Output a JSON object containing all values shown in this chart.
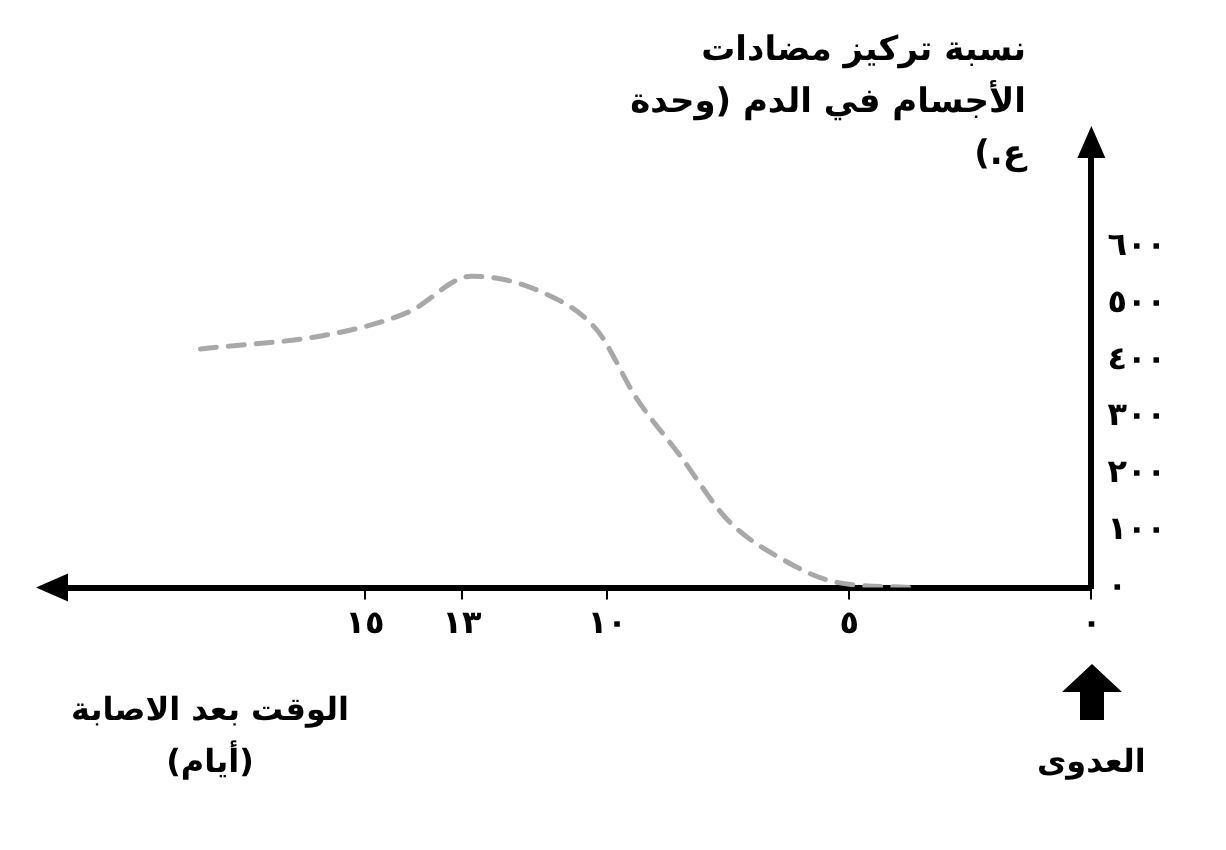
{
  "chart_data": {
    "type": "line",
    "ylabel": "نسبة تركيز مضادات الأجسام في الدم (وحدة ع.)",
    "xlabel": "الوقت بعد الاصابة (أيام)",
    "annotations": [
      "العدوى"
    ],
    "x": [
      18.4,
      15.7,
      14.1,
      12.8,
      11.3,
      10.2,
      9.4,
      8.5,
      7.5,
      6.3,
      5.3,
      3.7
    ],
    "series": [
      {
        "color": "#a8a8a8",
        "values": [
          420,
          446,
          485,
          548,
          518,
          452,
          334,
          233,
          118,
          46,
          10,
          0
        ]
      }
    ],
    "xlim": [
      21.3,
      0
    ],
    "ylim": [
      0,
      770
    ],
    "xticks": [
      {
        "value": 0,
        "label": "٠"
      },
      {
        "value": 5,
        "label": "٥"
      },
      {
        "value": 10,
        "label": "١٠"
      },
      {
        "value": 13,
        "label": "١٣"
      },
      {
        "value": 15,
        "label": "١٥"
      }
    ],
    "yticks": [
      {
        "value": 0,
        "label": "٠"
      },
      {
        "value": 100,
        "label": "١٠٠"
      },
      {
        "value": 200,
        "label": "٢٠٠"
      },
      {
        "value": 300,
        "label": "٣٠٠"
      },
      {
        "value": 400,
        "label": "٤٠٠"
      },
      {
        "value": 500,
        "label": "٥٠٠"
      },
      {
        "value": 600,
        "label": "٦٠٠"
      }
    ],
    "grid": false,
    "marker": "none",
    "line_style": "dashed"
  }
}
